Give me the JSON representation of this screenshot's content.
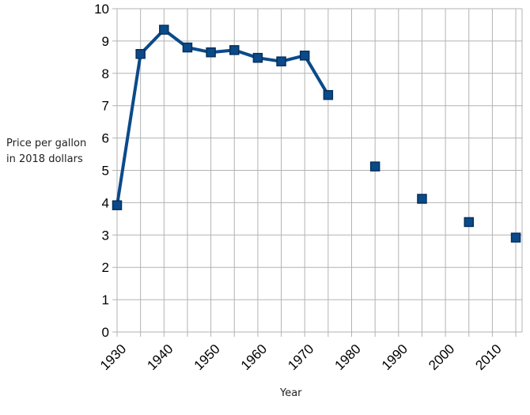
{
  "chart_data": {
    "type": "line",
    "title": "",
    "xlabel": "Year",
    "ylabel_lines": [
      "Price per gallon",
      "in 2018 dollars"
    ],
    "xlim": [
      1930,
      2018
    ],
    "ylim": [
      0,
      10
    ],
    "x_ticks": [
      "1930",
      "1940",
      "1950",
      "1960",
      "1970",
      "1980",
      "1990",
      "2000",
      "2010"
    ],
    "y_ticks": [
      "0",
      "1",
      "2",
      "3",
      "4",
      "5",
      "6",
      "7",
      "8",
      "9",
      "10"
    ],
    "grid": true,
    "legend": "none",
    "color": "#0b4a8a",
    "line_series": {
      "x": [
        1930,
        1935,
        1940,
        1945,
        1950,
        1955,
        1960,
        1965,
        1970,
        1975
      ],
      "y": [
        3.92,
        8.6,
        9.35,
        8.8,
        8.65,
        8.72,
        8.48,
        8.37,
        8.55,
        7.33
      ]
    },
    "point_series": {
      "x": [
        1985,
        1995,
        2005,
        2015
      ],
      "y": [
        5.12,
        4.12,
        3.4,
        2.92
      ]
    }
  }
}
